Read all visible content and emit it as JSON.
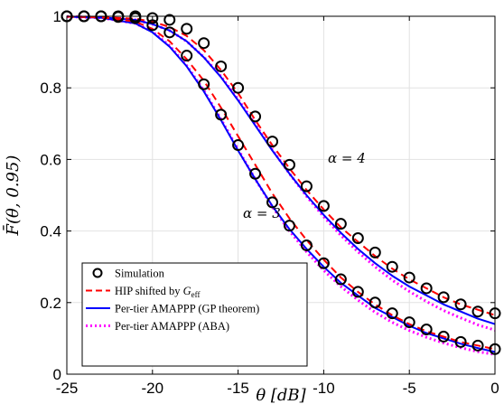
{
  "chart_data": {
    "type": "line",
    "title": "",
    "xlabel": "θ [dB]",
    "ylabel": "F̄(θ, 0.95)",
    "xlim": [
      -25,
      0
    ],
    "ylim": [
      0,
      1
    ],
    "xticks": [
      -25,
      -20,
      -15,
      -10,
      -5,
      0
    ],
    "yticks": [
      0,
      0.2,
      0.4,
      0.6,
      0.8,
      1
    ],
    "xtick_labels": [
      "-25",
      "-20",
      "-15",
      "-10",
      "-5",
      "0"
    ],
    "ytick_labels": [
      "0",
      "0.2",
      "0.4",
      "0.6",
      "0.8",
      "1"
    ],
    "grid": true,
    "legend_position": "bottom-left",
    "legend": [
      {
        "label": "Simulation",
        "style": "marker-circle",
        "color": "#000000"
      },
      {
        "label": "HIP shifted by G_eff",
        "label_main": "HIP shifted by ",
        "label_var": "G",
        "label_sub": "eff",
        "style": "dashed",
        "color": "#ff0000"
      },
      {
        "label": "Per-tier AMAPPP (GP theorem)",
        "style": "solid",
        "color": "#0000ff"
      },
      {
        "label": "Per-tier AMAPPP (ABA)",
        "style": "dotted",
        "color": "#ff00ff"
      }
    ],
    "annotations": [
      {
        "text": "α = 4",
        "x": -10,
        "y": 0.585
      },
      {
        "text": "α = 3",
        "x": -16.2,
        "y": 0.395
      }
    ],
    "series": [
      {
        "group": "α = 3",
        "kind": "simulation",
        "x": [
          -25,
          -24,
          -23,
          -22,
          -21,
          -20,
          -19,
          -18,
          -17,
          -16,
          -15,
          -14,
          -13,
          -12,
          -11,
          -10,
          -9,
          -8,
          -7,
          -6,
          -5,
          -4,
          -3,
          -2,
          -1,
          0
        ],
        "y": [
          1.0,
          1.0,
          1.0,
          0.998,
          0.995,
          0.975,
          0.955,
          0.89,
          0.81,
          0.725,
          0.64,
          0.56,
          0.48,
          0.415,
          0.36,
          0.31,
          0.265,
          0.23,
          0.2,
          0.17,
          0.145,
          0.125,
          0.105,
          0.09,
          0.08,
          0.07
        ]
      },
      {
        "group": "α = 4",
        "kind": "simulation",
        "x": [
          -25,
          -24,
          -23,
          -22,
          -21,
          -20,
          -19,
          -18,
          -17,
          -16,
          -15,
          -14,
          -13,
          -12,
          -11,
          -10,
          -9,
          -8,
          -7,
          -6,
          -5,
          -4,
          -3,
          -2,
          -1,
          0
        ],
        "y": [
          1.0,
          1.0,
          1.0,
          1.0,
          1.0,
          0.995,
          0.99,
          0.965,
          0.925,
          0.86,
          0.8,
          0.72,
          0.65,
          0.585,
          0.525,
          0.47,
          0.42,
          0.38,
          0.34,
          0.3,
          0.27,
          0.24,
          0.215,
          0.195,
          0.175,
          0.17
        ]
      },
      {
        "group": "α = 3",
        "kind": "HIP shifted by G_eff",
        "x": [
          -25,
          -23,
          -21,
          -20,
          -19,
          -18,
          -17,
          -16,
          -15,
          -14,
          -13,
          -12,
          -11,
          -10,
          -9,
          -8,
          -7,
          -6,
          -5,
          -4,
          -3,
          -2,
          -1,
          0
        ],
        "y": [
          0.999,
          0.997,
          0.985,
          0.965,
          0.93,
          0.88,
          0.82,
          0.745,
          0.665,
          0.585,
          0.505,
          0.435,
          0.375,
          0.32,
          0.27,
          0.23,
          0.195,
          0.165,
          0.14,
          0.12,
          0.105,
          0.09,
          0.08,
          0.07
        ]
      },
      {
        "group": "α = 3",
        "kind": "Per-tier AMAPPP (GP theorem)",
        "x": [
          -25,
          -23,
          -21,
          -20,
          -19,
          -18,
          -17,
          -16,
          -15,
          -14,
          -13,
          -12,
          -11,
          -10,
          -9,
          -8,
          -7,
          -6,
          -5,
          -4,
          -3,
          -2,
          -1,
          0
        ],
        "y": [
          0.999,
          0.996,
          0.98,
          0.955,
          0.915,
          0.86,
          0.79,
          0.71,
          0.625,
          0.545,
          0.47,
          0.405,
          0.35,
          0.3,
          0.255,
          0.22,
          0.185,
          0.16,
          0.135,
          0.115,
          0.1,
          0.085,
          0.073,
          0.062
        ]
      },
      {
        "group": "α = 3",
        "kind": "Per-tier AMAPPP (ABA)",
        "x": [
          -25,
          -23,
          -21,
          -20,
          -19,
          -18,
          -17,
          -16,
          -15,
          -14,
          -13,
          -12,
          -11,
          -10,
          -9,
          -8,
          -7,
          -6,
          -5,
          -4,
          -3,
          -2,
          -1,
          0
        ],
        "y": [
          0.999,
          0.996,
          0.98,
          0.957,
          0.918,
          0.862,
          0.793,
          0.713,
          0.628,
          0.545,
          0.468,
          0.4,
          0.342,
          0.29,
          0.245,
          0.207,
          0.173,
          0.145,
          0.122,
          0.103,
          0.087,
          0.074,
          0.063,
          0.055
        ]
      },
      {
        "group": "α = 4",
        "kind": "HIP shifted by G_eff",
        "x": [
          -25,
          -23,
          -21,
          -20,
          -19,
          -18,
          -17,
          -16,
          -15,
          -14,
          -13,
          -12,
          -11,
          -10,
          -9,
          -8,
          -7,
          -6,
          -5,
          -4,
          -3,
          -2,
          -1,
          0
        ],
        "y": [
          0.999,
          0.998,
          0.993,
          0.985,
          0.97,
          0.945,
          0.905,
          0.85,
          0.785,
          0.71,
          0.64,
          0.575,
          0.515,
          0.46,
          0.41,
          0.37,
          0.33,
          0.295,
          0.265,
          0.24,
          0.215,
          0.195,
          0.18,
          0.165
        ]
      },
      {
        "group": "α = 4",
        "kind": "Per-tier AMAPPP (GP theorem)",
        "x": [
          -25,
          -23,
          -21,
          -20,
          -19,
          -18,
          -17,
          -16,
          -15,
          -14,
          -13,
          -12,
          -11,
          -10,
          -9,
          -8,
          -7,
          -6,
          -5,
          -4,
          -3,
          -2,
          -1,
          0
        ],
        "y": [
          0.999,
          0.997,
          0.99,
          0.978,
          0.96,
          0.93,
          0.885,
          0.83,
          0.765,
          0.695,
          0.625,
          0.56,
          0.5,
          0.445,
          0.395,
          0.35,
          0.31,
          0.275,
          0.245,
          0.22,
          0.195,
          0.175,
          0.155,
          0.14
        ]
      },
      {
        "group": "α = 4",
        "kind": "Per-tier AMAPPP (ABA)",
        "x": [
          -25,
          -23,
          -21,
          -20,
          -19,
          -18,
          -17,
          -16,
          -15,
          -14,
          -13,
          -12,
          -11,
          -10,
          -9,
          -8,
          -7,
          -6,
          -5,
          -4,
          -3,
          -2,
          -1,
          0
        ],
        "y": [
          0.999,
          0.997,
          0.99,
          0.978,
          0.96,
          0.93,
          0.886,
          0.832,
          0.768,
          0.698,
          0.627,
          0.56,
          0.497,
          0.44,
          0.388,
          0.342,
          0.3,
          0.263,
          0.231,
          0.203,
          0.178,
          0.157,
          0.138,
          0.123
        ]
      }
    ]
  }
}
